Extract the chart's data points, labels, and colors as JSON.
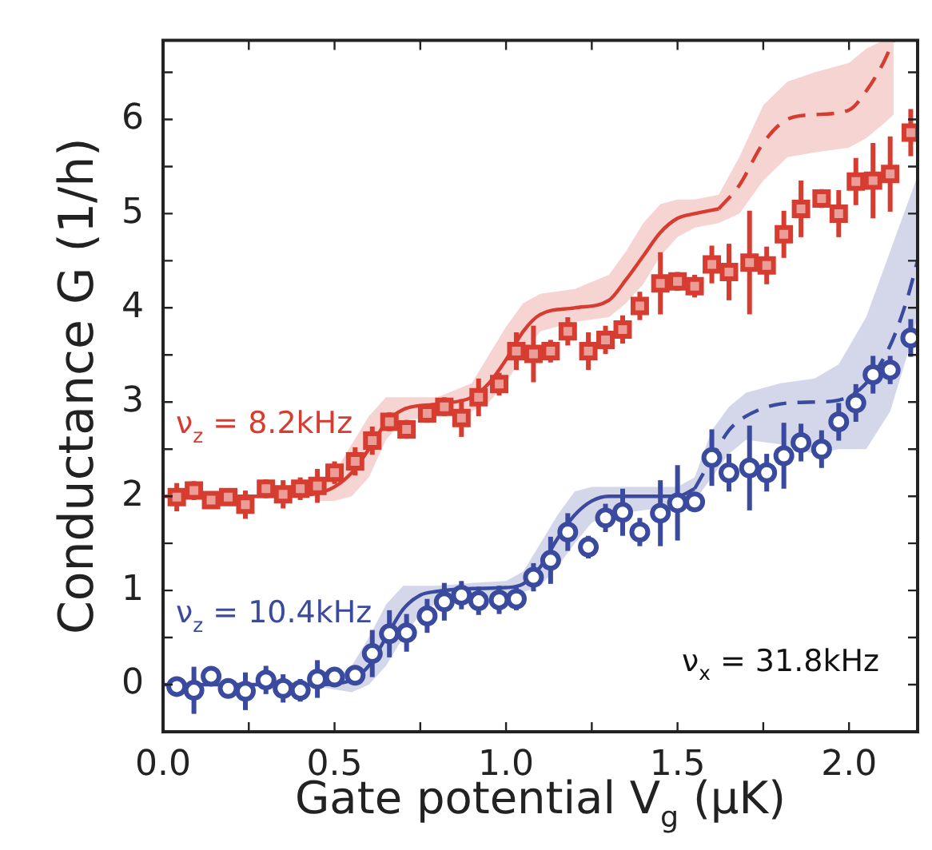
{
  "chart_data": {
    "type": "scatter",
    "xlabel": "Gate potential V$_{g}$ (μK)",
    "ylabel": "Conductance G (1/h)",
    "annotations": [
      "ν$_{x}$ = 31.8kHz"
    ],
    "xlim": [
      0,
      2.2
    ],
    "xticks": [
      {
        "value": 0,
        "label": "0.0"
      },
      {
        "value": 0.25,
        "label": null
      },
      {
        "value": 0.5,
        "label": "0.5"
      },
      {
        "value": 0.75,
        "label": null
      },
      {
        "value": 1,
        "label": "1.0"
      },
      {
        "value": 1.25,
        "label": null
      },
      {
        "value": 1.5,
        "label": "1.5"
      },
      {
        "value": 1.75,
        "label": null
      },
      {
        "value": 2,
        "label": "2.0"
      }
    ],
    "ylim": [
      -0.5,
      6.84
    ],
    "yticks": [
      {
        "value": -0.5,
        "label": null
      },
      0,
      {
        "value": 0.5,
        "label": null
      },
      1,
      {
        "value": 1.5,
        "label": null
      },
      2,
      {
        "value": 2.5,
        "label": null
      },
      3,
      {
        "value": 3.5,
        "label": null
      },
      4,
      {
        "value": 4.5,
        "label": null
      },
      5,
      {
        "value": 5.5,
        "label": null
      },
      6,
      {
        "value": 6.5,
        "label": null
      }
    ],
    "grid": false,
    "x": [
      0.04,
      0.09,
      0.14,
      0.19,
      0.24,
      0.3,
      0.35,
      0.4,
      0.45,
      0.5,
      0.56,
      0.61,
      0.66,
      0.71,
      0.77,
      0.82,
      0.87,
      0.92,
      0.98,
      1.03,
      1.08,
      1.13,
      1.18,
      1.24,
      1.29,
      1.34,
      1.39,
      1.45,
      1.5,
      1.55,
      1.6,
      1.65,
      1.71,
      1.76,
      1.81,
      1.86,
      1.92,
      1.97,
      2.02,
      2.07,
      2.12,
      2.18
    ],
    "series": [
      {
        "type": "line",
        "color": "#d63c30",
        "line_style": "solid",
        "marker": "none",
        "x": [
          0,
          0.1,
          0.2,
          0.3,
          0.4,
          0.45,
          0.5,
          0.55,
          0.6,
          0.65,
          0.7,
          0.8,
          0.9,
          0.95,
          1.0,
          1.05,
          1.1,
          1.2,
          1.3,
          1.35,
          1.4,
          1.45,
          1.5,
          1.55,
          1.62
        ],
        "values": [
          2,
          2,
          2,
          2,
          2.01,
          2.03,
          2.1,
          2.25,
          2.5,
          2.78,
          2.92,
          2.98,
          3.05,
          3.2,
          3.45,
          3.75,
          3.93,
          4.0,
          4.08,
          4.3,
          4.55,
          4.8,
          4.95,
          5.0,
          5.05
        ],
        "lower": [
          null,
          null,
          null,
          null,
          null,
          1.95,
          1.95,
          2.0,
          2.2,
          2.6,
          2.8,
          2.85,
          2.9,
          3.0,
          3.2,
          3.5,
          3.75,
          3.85,
          3.9,
          4.05,
          4.25,
          4.55,
          4.75,
          4.85,
          4.9
        ],
        "upper": [
          null,
          null,
          null,
          null,
          null,
          2.1,
          2.25,
          2.55,
          2.85,
          3.05,
          3.05,
          3.05,
          3.2,
          3.5,
          3.8,
          4.05,
          4.15,
          4.2,
          4.35,
          4.6,
          4.9,
          5.1,
          5.15,
          5.15,
          5.2
        ]
      },
      {
        "type": "line",
        "color": "#d63c30",
        "line_style": "dashed",
        "marker": "none",
        "x": [
          1.62,
          1.68,
          1.75,
          1.82,
          1.9,
          2.0,
          2.05,
          2.1,
          2.13
        ],
        "values": [
          5.05,
          5.3,
          5.75,
          6.0,
          6.05,
          6.1,
          6.3,
          6.6,
          6.84
        ],
        "lower": [
          4.9,
          5.0,
          5.35,
          5.6,
          5.65,
          5.7,
          5.8,
          5.95,
          6.05
        ],
        "upper": [
          5.2,
          5.6,
          6.15,
          6.4,
          6.5,
          6.6,
          6.75,
          6.84,
          6.84
        ]
      },
      {
        "type": "line",
        "color": "#3a4a9f",
        "line_style": "solid",
        "marker": "none",
        "x": [
          0,
          0.1,
          0.2,
          0.3,
          0.4,
          0.45,
          0.5,
          0.55,
          0.6,
          0.65,
          0.7,
          0.75,
          0.8,
          0.9,
          1.0,
          1.05,
          1.1,
          1.15,
          1.2,
          1.25,
          1.3,
          1.4,
          1.5,
          1.55
        ],
        "values": [
          0,
          0,
          0,
          0,
          0,
          0,
          0.01,
          0.05,
          0.2,
          0.5,
          0.8,
          0.95,
          0.99,
          1.02,
          1.03,
          1.07,
          1.25,
          1.55,
          1.8,
          1.95,
          2.0,
          2.0,
          2.0,
          2.08
        ],
        "lower": [
          null,
          null,
          null,
          null,
          null,
          -0.02,
          -0.05,
          -0.08,
          0.0,
          0.2,
          0.5,
          0.75,
          0.87,
          0.92,
          0.95,
          0.98,
          1.05,
          1.25,
          1.5,
          1.72,
          1.8,
          1.85,
          1.9,
          1.95
        ],
        "upper": [
          null,
          null,
          null,
          null,
          null,
          0.02,
          0.05,
          0.2,
          0.5,
          0.85,
          1.05,
          1.05,
          1.05,
          1.08,
          1.1,
          1.2,
          1.5,
          1.8,
          2.05,
          2.1,
          2.1,
          2.1,
          2.1,
          2.2
        ]
      },
      {
        "type": "line",
        "color": "#3a4a9f",
        "line_style": "dashed",
        "marker": "none",
        "x": [
          1.55,
          1.6,
          1.65,
          1.7,
          1.8,
          1.9,
          1.97,
          2.05,
          2.12,
          2.17,
          2.2
        ],
        "values": [
          2.08,
          2.4,
          2.7,
          2.85,
          2.98,
          3.0,
          3.02,
          3.2,
          3.6,
          4.1,
          4.5
        ],
        "lower": [
          1.95,
          2.2,
          2.45,
          2.6,
          2.55,
          2.45,
          2.5,
          2.5,
          2.9,
          3.5,
          3.9
        ],
        "upper": [
          2.2,
          2.7,
          2.95,
          3.1,
          3.2,
          3.25,
          3.4,
          3.9,
          4.6,
          5.1,
          5.4
        ]
      },
      {
        "name": "ν$_{z}$ = 8.2kHz",
        "color": "#d63c30",
        "marker": "square",
        "values": [
          1.99,
          2.06,
          1.96,
          1.99,
          1.91,
          2.08,
          2.02,
          2.08,
          2.11,
          2.25,
          2.37,
          2.59,
          2.79,
          2.71,
          2.88,
          2.95,
          2.83,
          3.05,
          3.19,
          3.54,
          3.51,
          3.54,
          3.75,
          3.54,
          3.66,
          3.77,
          4.02,
          4.26,
          4.28,
          4.23,
          4.46,
          4.38,
          4.48,
          4.45,
          4.78,
          5.05,
          5.16,
          5.0,
          5.34,
          5.35,
          5.42,
          5.86
        ],
        "errors": [
          0.15,
          0.1,
          0.08,
          0.08,
          0.15,
          0.1,
          0.15,
          0.12,
          0.18,
          0.12,
          0.15,
          0.15,
          0.1,
          0.1,
          0.1,
          0.1,
          0.2,
          0.2,
          0.12,
          0.2,
          0.3,
          0.12,
          0.15,
          0.2,
          0.15,
          0.15,
          0.15,
          0.33,
          0.1,
          0.12,
          0.2,
          0.3,
          0.55,
          0.2,
          0.25,
          0.3,
          0.1,
          0.25,
          0.25,
          0.4,
          0.4,
          0.25
        ]
      },
      {
        "name": "ν$_{z}$ = 10.4kHz",
        "color": "#3a4a9f",
        "marker": "circle",
        "values": [
          -0.02,
          -0.06,
          0.09,
          -0.04,
          -0.07,
          0.05,
          -0.04,
          -0.06,
          0.06,
          0.08,
          0.1,
          0.33,
          0.54,
          0.55,
          0.73,
          0.88,
          0.95,
          0.89,
          0.9,
          0.91,
          1.14,
          1.32,
          1.62,
          1.46,
          1.77,
          1.83,
          1.62,
          1.82,
          1.93,
          1.94,
          2.41,
          2.25,
          2.3,
          2.25,
          2.43,
          2.57,
          2.5,
          2.79,
          2.99,
          3.29,
          3.34,
          3.68
        ],
        "errors": [
          0.1,
          0.25,
          0.08,
          0.1,
          0.2,
          0.15,
          0.15,
          0.12,
          0.2,
          0.05,
          0.1,
          0.25,
          0.25,
          0.2,
          0.18,
          0.2,
          0.15,
          0.15,
          0.15,
          0.12,
          0.15,
          0.25,
          0.2,
          0.12,
          0.15,
          0.25,
          0.15,
          0.35,
          0.4,
          0.1,
          0.3,
          0.2,
          0.45,
          0.2,
          0.35,
          0.2,
          0.2,
          0.2,
          0.2,
          0.2,
          0.15,
          0.2
        ]
      }
    ]
  }
}
